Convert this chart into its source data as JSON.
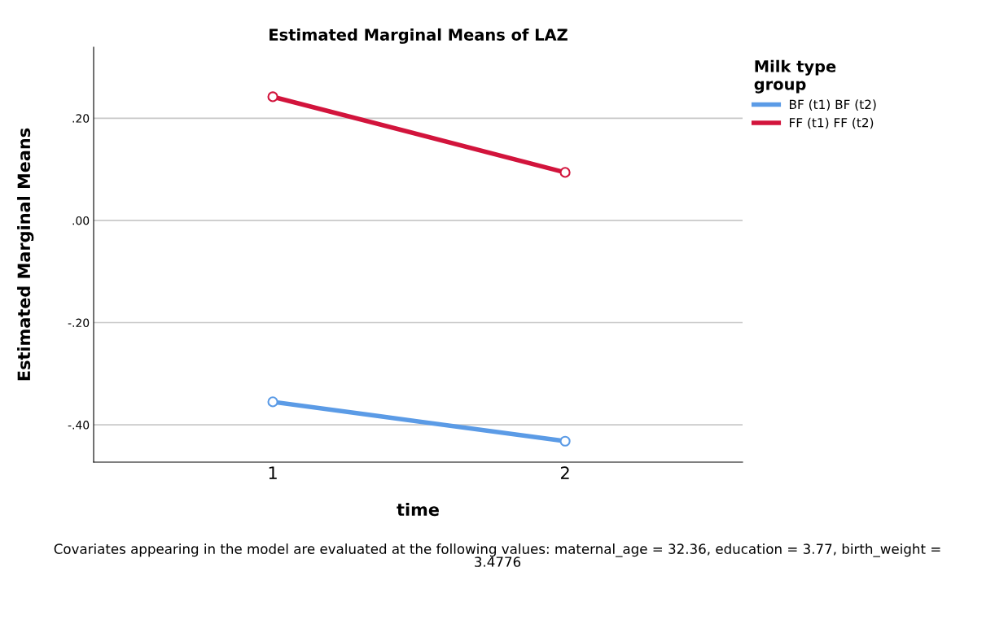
{
  "chart_data": {
    "type": "line",
    "title": "Estimated Marginal Means of LAZ",
    "xlabel": "time",
    "ylabel": "Estimated Marginal Means",
    "legend_title": "Milk type\ngroup",
    "categories": [
      "1",
      "2"
    ],
    "series": [
      {
        "name": "BF (t1) BF (t2)",
        "color": "#5b9be6",
        "values": [
          -0.355,
          -0.432
        ]
      },
      {
        "name": "FF (t1) FF (t2)",
        "color": "#d2143c",
        "values": [
          0.242,
          0.094
        ]
      }
    ],
    "ylim": [
      -0.473,
      0.339
    ],
    "yticks": [
      {
        "value": -0.4,
        "label": "-.40"
      },
      {
        "value": -0.2,
        "label": "-.20"
      },
      {
        "value": 0,
        "label": ".00"
      },
      {
        "value": 0.2,
        "label": ".20"
      }
    ],
    "grid": "y",
    "legend": "top right",
    "marker": "circle",
    "line_style": "solid",
    "annotations": [
      "Covariates appearing in the model are evaluated at the following values: maternal_age = 32.36, education = 3.77, birth_weight =\n3.4776"
    ]
  }
}
